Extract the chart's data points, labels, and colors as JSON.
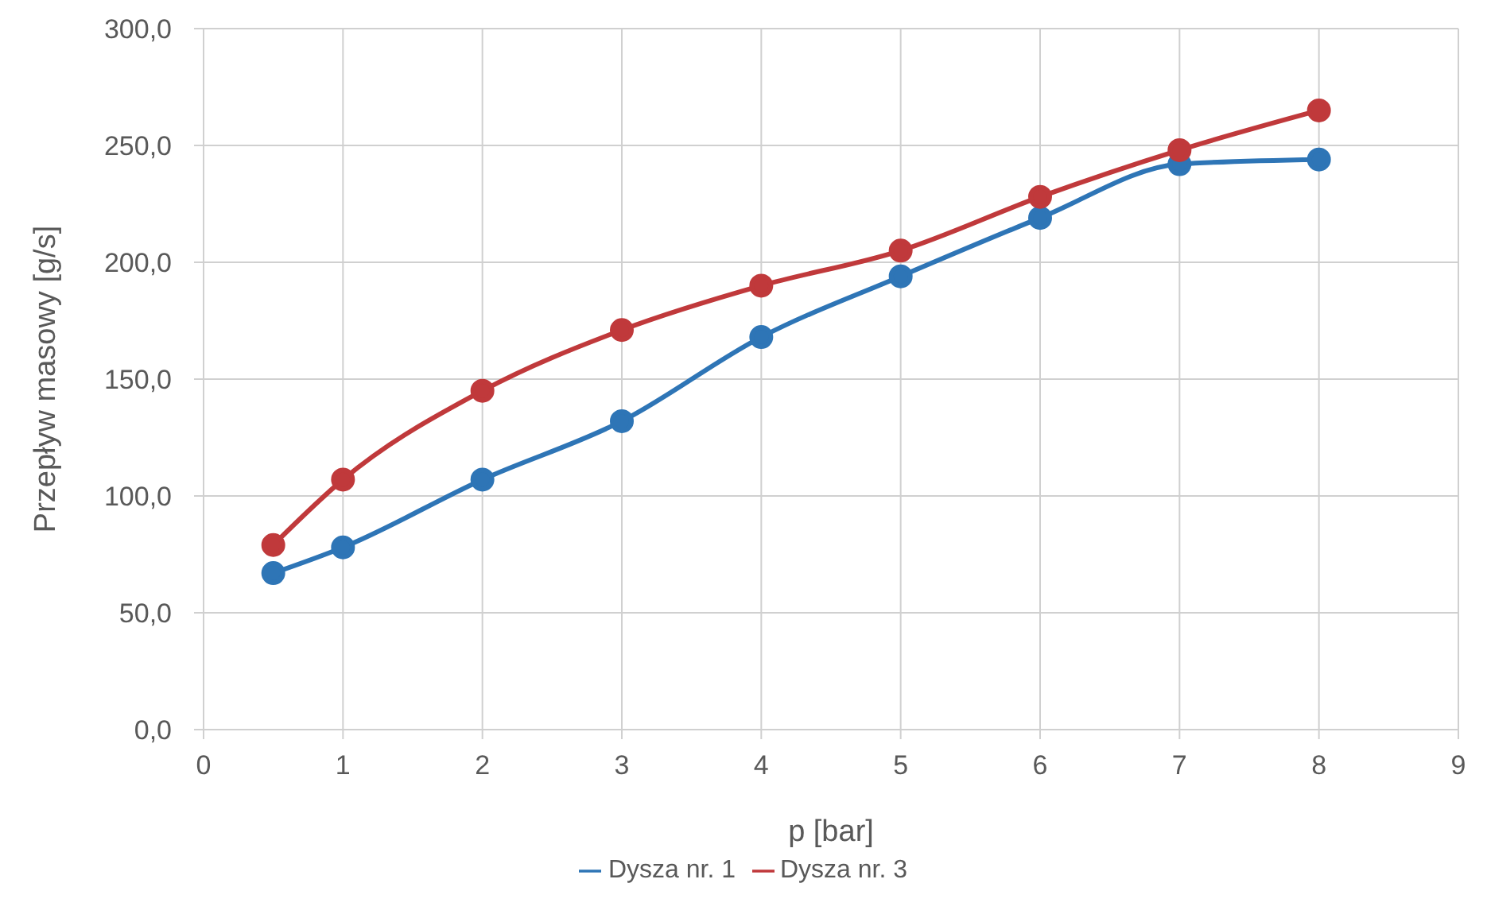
{
  "chart_data": {
    "type": "line",
    "xlabel": "p [bar]",
    "ylabel": "Przepływ masowy [g/s]",
    "x": [
      0.5,
      1,
      2,
      3,
      4,
      5,
      6,
      7,
      8
    ],
    "series": [
      {
        "name": "Dysza nr. 1",
        "color": "#2e75b6",
        "values": [
          67,
          78,
          107,
          132,
          168,
          194,
          219,
          242,
          244
        ]
      },
      {
        "name": "Dysza nr. 3",
        "color": "#c0393b",
        "values": [
          79,
          107,
          145,
          171,
          190,
          205,
          228,
          248,
          265
        ]
      }
    ],
    "xlim": [
      0,
      9
    ],
    "xticks": [
      0,
      1,
      2,
      3,
      4,
      5,
      6,
      7,
      8,
      9
    ],
    "ylim": [
      0,
      300
    ],
    "yticks": [
      {
        "value": 0,
        "label": "0,0"
      },
      {
        "value": 50,
        "label": "50,0"
      },
      {
        "value": 100,
        "label": "100,0"
      },
      {
        "value": 150,
        "label": "150,0"
      },
      {
        "value": 200,
        "label": "200,0"
      },
      {
        "value": 250,
        "label": "250,0"
      },
      {
        "value": 300,
        "label": "300,0"
      }
    ],
    "grid": true,
    "legend": "bottom",
    "marker": "circle",
    "line_style": "solid"
  }
}
